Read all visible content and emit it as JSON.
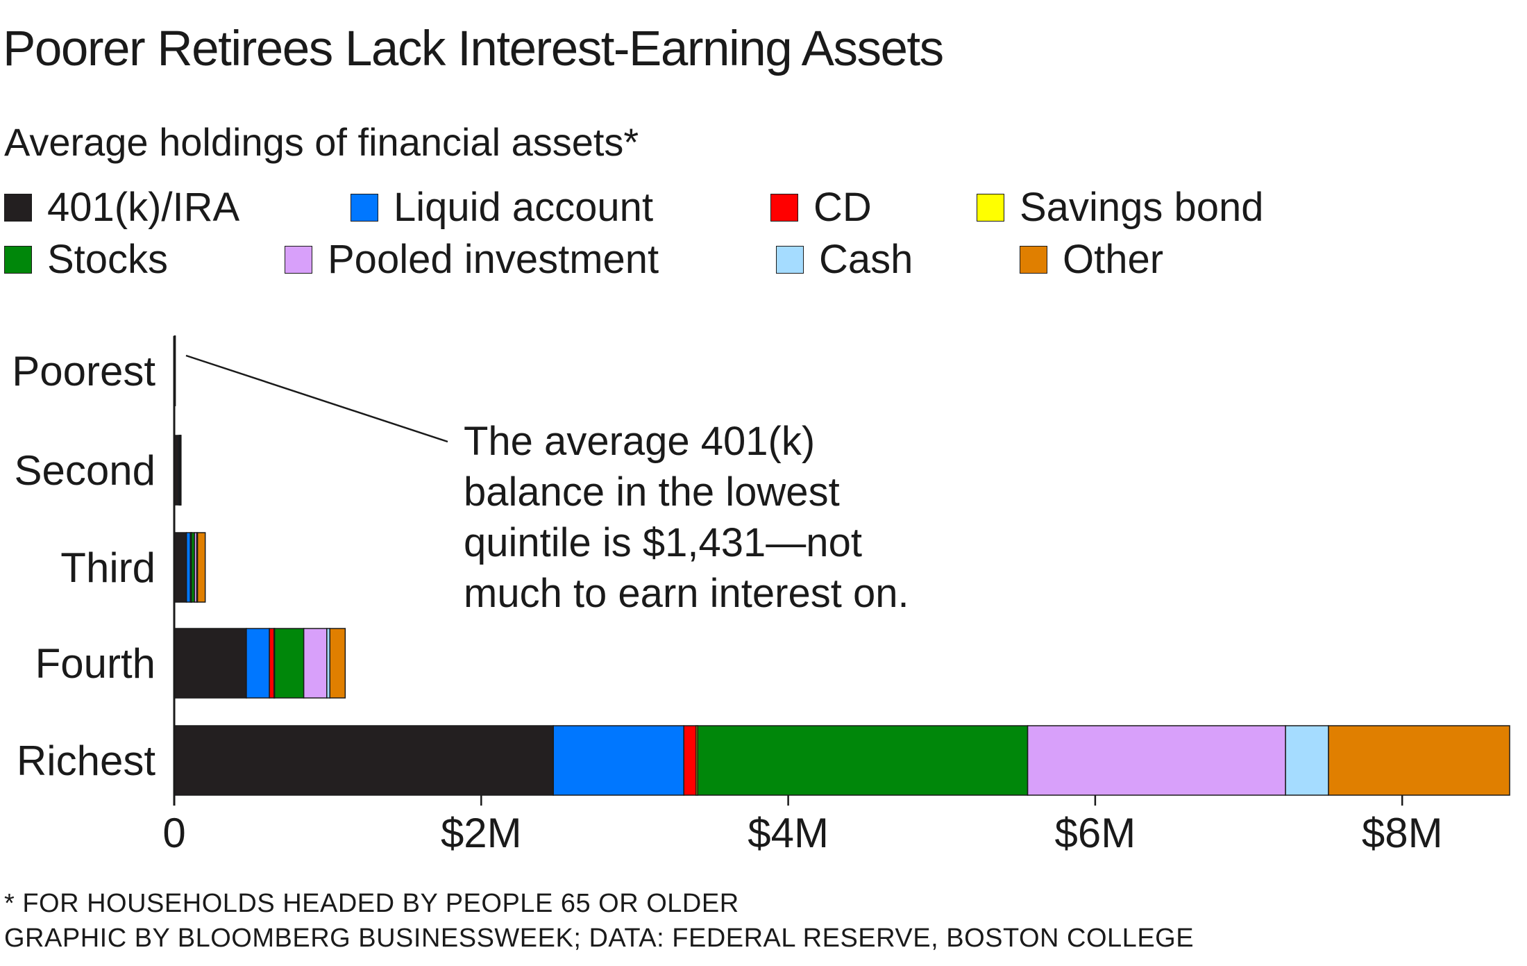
{
  "title": "Poorer Retirees Lack Interest-Earning Assets",
  "subtitle": "Average holdings of financial assets*",
  "legend": [
    {
      "label": "401(k)/IRA",
      "color": "#231f20"
    },
    {
      "label": "Liquid account",
      "color": "#0077ff"
    },
    {
      "label": "CD",
      "color": "#ff0000"
    },
    {
      "label": "Savings bond",
      "color": "#ffff00"
    },
    {
      "label": "Stocks",
      "color": "#00870a"
    },
    {
      "label": "Pooled investment",
      "color": "#d8a0fa"
    },
    {
      "label": "Cash",
      "color": "#a5dcff"
    },
    {
      "label": "Other",
      "color": "#e07f00"
    }
  ],
  "annotation": {
    "lines": [
      "The average 401(k)",
      "balance in the lowest",
      "quintile is $1,431—not",
      "much to earn interest on."
    ]
  },
  "footnotes": {
    "note": "* FOR HOUSEHOLDS HEADED BY PEOPLE 65 OR OLDER",
    "source": "GRAPHIC BY BLOOMBERG BUSINESSWEEK; DATA: FEDERAL RESERVE, BOSTON COLLEGE"
  },
  "chart_data": {
    "type": "bar",
    "orientation": "horizontal",
    "stacked": true,
    "title": "Poorer Retirees Lack Interest-Earning Assets",
    "subtitle": "Average holdings of financial assets*",
    "categories": [
      "Poorest",
      "Second",
      "Third",
      "Fourth",
      "Richest"
    ],
    "units": "USD",
    "xlim": [
      0,
      8700000
    ],
    "xticks": [
      0,
      2000000,
      4000000,
      6000000,
      8000000
    ],
    "xtick_labels": [
      "0",
      "$2M",
      "$4M",
      "$6M",
      "$8M"
    ],
    "series": [
      {
        "name": "401(k)/IRA",
        "color": "#231f20",
        "values": [
          1431,
          28000,
          80000,
          470000,
          2470000
        ]
      },
      {
        "name": "Liquid account",
        "color": "#0077ff",
        "values": [
          800,
          7000,
          25000,
          150000,
          850000
        ]
      },
      {
        "name": "CD",
        "color": "#ff0000",
        "values": [
          100,
          1000,
          6000,
          30000,
          80000
        ]
      },
      {
        "name": "Savings bond",
        "color": "#ffff00",
        "values": [
          20,
          300,
          1000,
          4000,
          10000
        ]
      },
      {
        "name": "Stocks",
        "color": "#00870a",
        "values": [
          200,
          2000,
          20000,
          190000,
          2150000
        ]
      },
      {
        "name": "Pooled investment",
        "color": "#d8a0fa",
        "values": [
          100,
          2000,
          15000,
          150000,
          1680000
        ]
      },
      {
        "name": "Cash",
        "color": "#a5dcff",
        "values": [
          100,
          500,
          5000,
          20000,
          280000
        ]
      },
      {
        "name": "Other",
        "color": "#e07f00",
        "values": [
          300,
          2000,
          50000,
          100000,
          1180000
        ]
      }
    ]
  }
}
